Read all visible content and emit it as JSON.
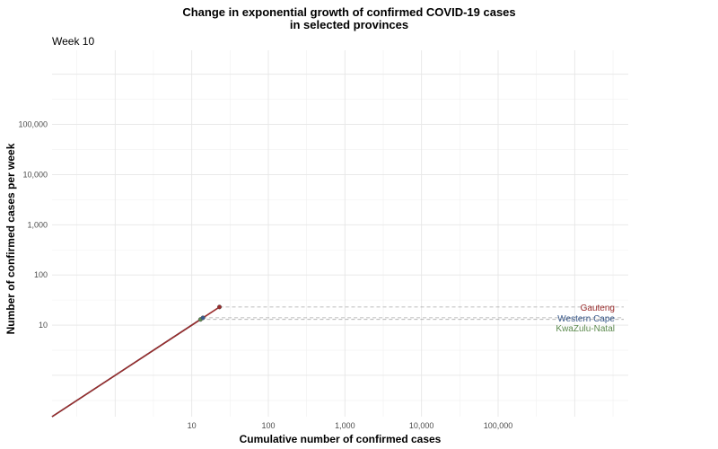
{
  "chart_data": {
    "type": "line",
    "title_line1": "Change in exponential growth of confirmed COVID-19 cases",
    "title_line2": "in selected provinces",
    "subtitle": "Week 10",
    "xlabel": "Cumulative number of confirmed cases",
    "ylabel": "Number of confirmed cases per week",
    "x_scale": "log10",
    "y_scale": "log10",
    "xlim": [
      0.15,
      5000000
    ],
    "ylim": [
      0.15,
      3000000
    ],
    "x_ticks": [
      {
        "value": 10,
        "label": "10"
      },
      {
        "value": 100,
        "label": "100"
      },
      {
        "value": 1000,
        "label": "1,000"
      },
      {
        "value": 10000,
        "label": "10,000"
      },
      {
        "value": 100000,
        "label": "100,000"
      }
    ],
    "y_ticks": [
      {
        "value": 10,
        "label": "10"
      },
      {
        "value": 100,
        "label": "100"
      },
      {
        "value": 1000,
        "label": "1,000"
      },
      {
        "value": 10000,
        "label": "10,000"
      },
      {
        "value": 100000,
        "label": "100,000"
      }
    ],
    "grid": true,
    "series": [
      {
        "name": "KwaZulu-Natal",
        "color": "#5c8a4e",
        "x": [
          0.15,
          1,
          13
        ],
        "y": [
          0.15,
          1,
          13
        ]
      },
      {
        "name": "Western Cape",
        "color": "#3a5a8c",
        "x": [
          0.15,
          1,
          14
        ],
        "y": [
          0.15,
          1,
          14
        ]
      },
      {
        "name": "Gauteng",
        "color": "#9b2c2c",
        "x": [
          0.15,
          1,
          23
        ],
        "y": [
          0.15,
          1,
          23
        ]
      }
    ]
  }
}
